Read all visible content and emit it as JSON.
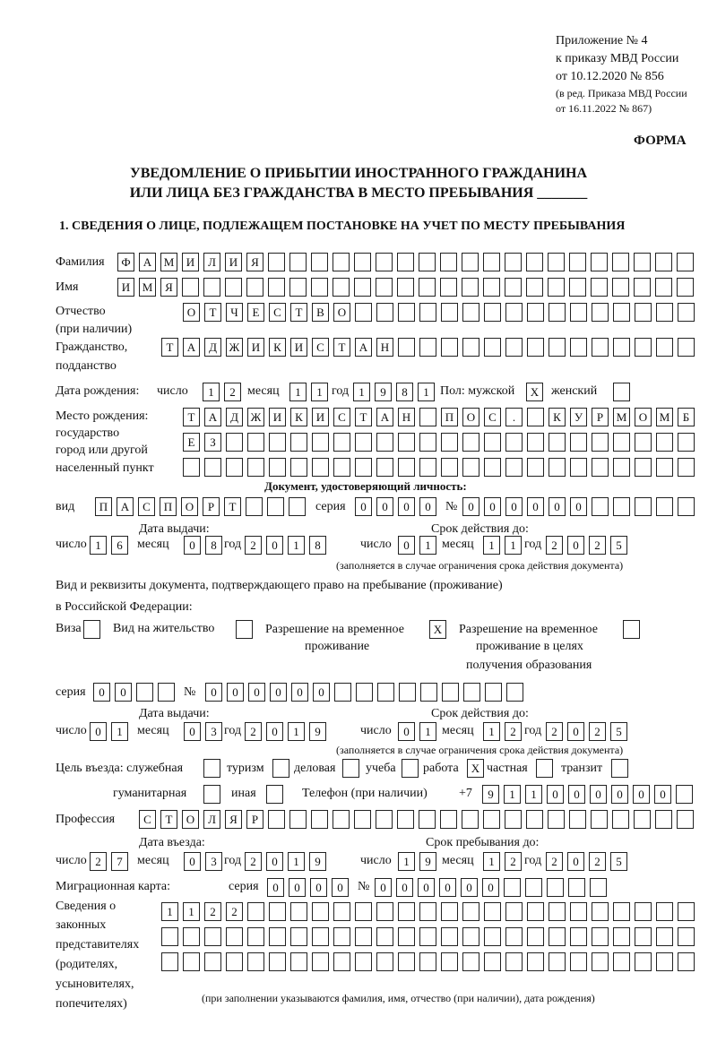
{
  "header": {
    "appendix": "Приложение № 4",
    "order": "к приказу МВД России",
    "order_date": "от 10.12.2020 № 856",
    "revision_1": "(в ред. Приказа МВД России",
    "revision_2": "от 16.11.2022 № 867)",
    "form_label": "ФОРМА",
    "title_1": "УВЕДОМЛЕНИЕ О ПРИБЫТИИ ИНОСТРАННОГО ГРАЖДАНИНА",
    "title_2": "ИЛИ ЛИЦА БЕЗ ГРАЖДАНСТВА В МЕСТО ПРЕБЫВАНИЯ _______",
    "section_1": "1. СВЕДЕНИЯ О ЛИЦЕ, ПОДЛЕЖАЩЕМ ПОСТАНОВКЕ НА УЧЕТ ПО МЕСТУ ПРЕБЫВАНИЯ"
  },
  "labels": {
    "surname": "Фамилия",
    "name": "Имя",
    "patronymic": "Отчество",
    "patronymic_note": "(при наличии)",
    "citizenship": "Гражданство,",
    "citizenship_2": "подданство",
    "birth_date": "Дата рождения:",
    "day": "число",
    "month": "месяц",
    "year": "год",
    "sex": "Пол: мужской",
    "female": "женский",
    "birthplace_1": "Место рождения:",
    "birthplace_2": "государство",
    "birthplace_3": "город или другой",
    "birthplace_4": "населенный пункт",
    "id_doc": "Документ, удостоверяющий личность:",
    "kind": "вид",
    "series": "серия",
    "number": "№",
    "issue_date": "Дата выдачи:",
    "valid_until": "Срок действия до:",
    "validity_note": "(заполняется в случае ограничения срока действия документа)",
    "right_doc_1": "Вид и реквизиты документа, подтверждающего право на пребывание (проживание)",
    "right_doc_2": "в Российской Федерации:",
    "visa": "Виза",
    "residence": "Вид на жительство",
    "temp_permit_1": "Разрешение на временное",
    "temp_permit_2": "проживание",
    "edu_permit_1": "Разрешение на временное",
    "edu_permit_2": "проживание в целях",
    "edu_permit_3": "получения образования",
    "purpose": "Цель въезда: служебная",
    "tourism": "туризм",
    "business": "деловая",
    "study": "учеба",
    "work": "работа",
    "private": "частная",
    "transit": "транзит",
    "humanitarian": "гуманитарная",
    "other": "иная",
    "phone": "Телефон (при наличии)",
    "phone_prefix": "+7",
    "profession": "Профессия",
    "entry_date": "Дата въезда:",
    "stay_until": "Срок пребывания до:",
    "migration_card": "Миграционная карта:",
    "reps_1": "Сведения о",
    "reps_2": "законных",
    "reps_3": "представителях",
    "reps_4": "(родителях,",
    "reps_5": "усыновителях,",
    "reps_6": "попечителях)",
    "reps_note": "(при заполнении указываются фамилия, имя, отчество (при наличии), дата рождения)"
  },
  "person": {
    "surname": "ФАМИЛИЯ",
    "name": "ИМЯ",
    "patronymic": "ОТЧЕСТВО",
    "citizenship": "ТАДЖИКИСТАН",
    "birth_day": "12",
    "birth_month": "11",
    "birth_year": "1981",
    "sex_male": "X",
    "sex_female": "",
    "birthplace_1": "ТАДЖИКИСТАН ПОС. КУРМОМБ",
    "birthplace_2": "ЕЗ",
    "birthplace_3": ""
  },
  "id_document": {
    "kind": "ПАСПОРТ",
    "series": "0000",
    "number": "000000",
    "issue_day": "16",
    "issue_month": "08",
    "issue_year": "2018",
    "valid_day": "01",
    "valid_month": "11",
    "valid_year": "2025"
  },
  "right_document": {
    "visa": "",
    "residence_permit": "",
    "temporary_residence": "X",
    "temporary_residence_education": "",
    "series": "00",
    "number": "000000",
    "issue_day": "01",
    "issue_month": "03",
    "issue_year": "2019",
    "valid_day": "01",
    "valid_month": "12",
    "valid_year": "2025"
  },
  "purpose": {
    "official": "",
    "tourism": "",
    "business": "",
    "study": "",
    "work": "X",
    "private": "",
    "transit": "",
    "humanitarian": "",
    "other": ""
  },
  "phone": "911000000",
  "profession": "СТОЛЯР",
  "entry": {
    "entry_day": "27",
    "entry_month": "03",
    "entry_year": "2019",
    "stay_day": "19",
    "stay_month": "12",
    "stay_year": "2025"
  },
  "migration_card": {
    "series": "0000",
    "number": "000000"
  },
  "representatives": {
    "row_1": "1122",
    "row_2": "",
    "row_3": ""
  }
}
